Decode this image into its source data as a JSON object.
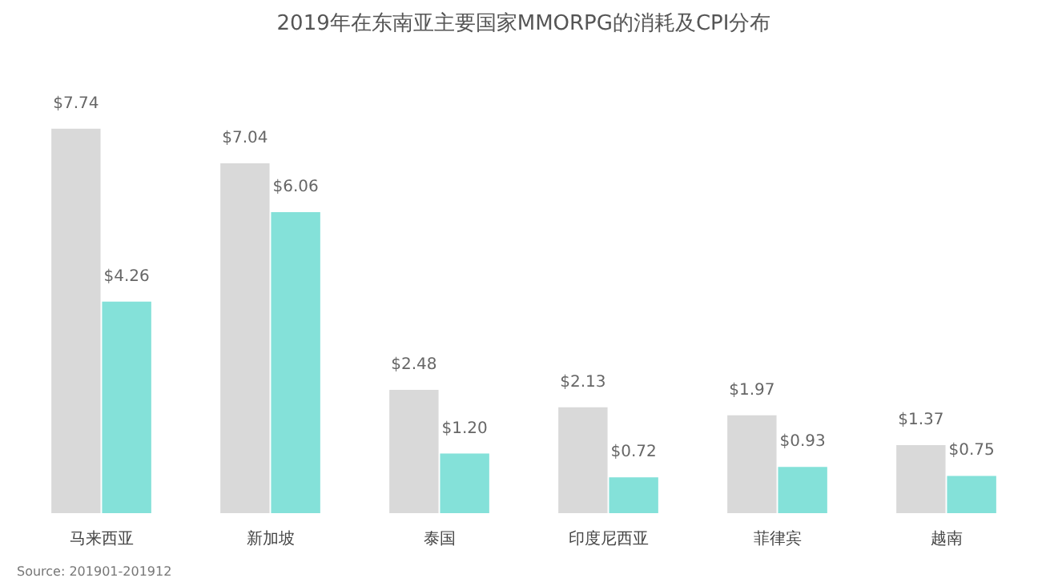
{
  "chart_data": {
    "type": "bar",
    "title": "2019年在东南亚主要国家MMORPG的消耗及CPI分布",
    "categories": [
      "马来西亚",
      "新加坡",
      "泰国",
      "印度尼西亚",
      "菲律宾",
      "越南"
    ],
    "series": [
      {
        "color": "#d9d9d9",
        "values": [
          7.74,
          7.04,
          2.48,
          2.13,
          1.97,
          1.37
        ],
        "value_labels": [
          "$7.74",
          "$7.04",
          "$2.48",
          "$2.13",
          "$1.97",
          "$1.37"
        ]
      },
      {
        "color": "#84e1d9",
        "values": [
          4.26,
          6.06,
          1.2,
          0.72,
          0.93,
          0.75
        ],
        "value_labels": [
          "$4.26",
          "$6.06",
          "$1.20",
          "$0.72",
          "$0.93",
          "$0.75"
        ]
      }
    ],
    "annotations": [
      "Source: 201901-201912"
    ],
    "grid": false
  }
}
